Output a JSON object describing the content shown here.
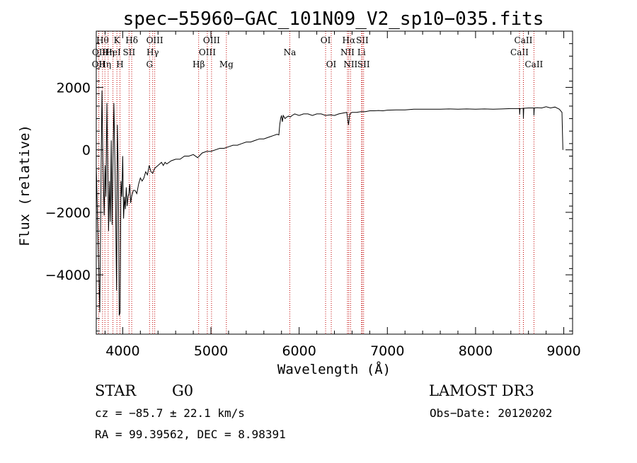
{
  "chart_data": {
    "type": "line",
    "title": "spec−55960−GAC_101N09_V2_sp10−035.fits",
    "xlabel": "Wavelength (Å)",
    "ylabel": "Flux (relative)",
    "xlim": [
      3700,
      9100
    ],
    "ylim": [
      -5900,
      3800
    ],
    "x_ticks": [
      4000,
      5000,
      6000,
      7000,
      8000,
      9000
    ],
    "y_ticks": [
      2000,
      0,
      -2000,
      -4000
    ],
    "x_tick_labels": [
      "4000",
      "5000",
      "6000",
      "7000",
      "8000",
      "9000"
    ],
    "y_tick_labels": [
      "2000",
      "0",
      "−2000",
      "−4000"
    ],
    "grid": false,
    "series": [
      {
        "name": "spectrum",
        "points": [
          [
            3700,
            -500
          ],
          [
            3720,
            -2900
          ],
          [
            3740,
            -5200
          ],
          [
            3755,
            -500
          ],
          [
            3765,
            1900
          ],
          [
            3775,
            -300
          ],
          [
            3790,
            -2100
          ],
          [
            3800,
            -500
          ],
          [
            3810,
            -1500
          ],
          [
            3820,
            1500
          ],
          [
            3830,
            -500
          ],
          [
            3840,
            -2600
          ],
          [
            3850,
            -1000
          ],
          [
            3860,
            -2300
          ],
          [
            3870,
            300
          ],
          [
            3880,
            -2400
          ],
          [
            3890,
            -200
          ],
          [
            3900,
            1500
          ],
          [
            3910,
            -200
          ],
          [
            3920,
            -2000
          ],
          [
            3930,
            -4500
          ],
          [
            3940,
            800
          ],
          [
            3950,
            -800
          ],
          [
            3960,
            -5300
          ],
          [
            3970,
            -5200
          ],
          [
            3980,
            -1000
          ],
          [
            3990,
            -1500
          ],
          [
            4000,
            -200
          ],
          [
            4010,
            -2200
          ],
          [
            4020,
            -1500
          ],
          [
            4030,
            -1900
          ],
          [
            4040,
            -1200
          ],
          [
            4050,
            -1800
          ],
          [
            4060,
            -1500
          ],
          [
            4070,
            -1400
          ],
          [
            4080,
            -1100
          ],
          [
            4090,
            -1700
          ],
          [
            4100,
            -1500
          ],
          [
            4120,
            -1300
          ],
          [
            4140,
            -1300
          ],
          [
            4160,
            -1400
          ],
          [
            4180,
            -1100
          ],
          [
            4200,
            -900
          ],
          [
            4220,
            -1000
          ],
          [
            4240,
            -900
          ],
          [
            4260,
            -700
          ],
          [
            4280,
            -800
          ],
          [
            4300,
            -500
          ],
          [
            4320,
            -700
          ],
          [
            4340,
            -750
          ],
          [
            4360,
            -600
          ],
          [
            4380,
            -550
          ],
          [
            4400,
            -500
          ],
          [
            4420,
            -450
          ],
          [
            4440,
            -400
          ],
          [
            4460,
            -500
          ],
          [
            4480,
            -400
          ],
          [
            4500,
            -450
          ],
          [
            4550,
            -350
          ],
          [
            4600,
            -300
          ],
          [
            4650,
            -300
          ],
          [
            4700,
            -200
          ],
          [
            4750,
            -200
          ],
          [
            4800,
            -150
          ],
          [
            4850,
            -250
          ],
          [
            4900,
            -100
          ],
          [
            4950,
            -50
          ],
          [
            5000,
            -50
          ],
          [
            5050,
            0
          ],
          [
            5100,
            50
          ],
          [
            5150,
            50
          ],
          [
            5200,
            100
          ],
          [
            5250,
            150
          ],
          [
            5300,
            150
          ],
          [
            5350,
            200
          ],
          [
            5400,
            250
          ],
          [
            5450,
            250
          ],
          [
            5500,
            300
          ],
          [
            5550,
            350
          ],
          [
            5600,
            350
          ],
          [
            5650,
            400
          ],
          [
            5700,
            450
          ],
          [
            5750,
            500
          ],
          [
            5770,
            480
          ],
          [
            5780,
            800
          ],
          [
            5790,
            1000
          ],
          [
            5800,
            1100
          ],
          [
            5810,
            900
          ],
          [
            5820,
            1100
          ],
          [
            5840,
            1000
          ],
          [
            5860,
            1050
          ],
          [
            5880,
            1080
          ],
          [
            5900,
            1050
          ],
          [
            5920,
            1100
          ],
          [
            5950,
            1150
          ],
          [
            6000,
            1100
          ],
          [
            6050,
            1150
          ],
          [
            6100,
            1150
          ],
          [
            6150,
            1100
          ],
          [
            6200,
            1150
          ],
          [
            6250,
            1150
          ],
          [
            6300,
            1100
          ],
          [
            6350,
            1120
          ],
          [
            6400,
            1100
          ],
          [
            6450,
            1150
          ],
          [
            6500,
            1180
          ],
          [
            6540,
            1200
          ],
          [
            6560,
            800
          ],
          [
            6575,
            1150
          ],
          [
            6600,
            1200
          ],
          [
            6650,
            1200
          ],
          [
            6700,
            1220
          ],
          [
            6750,
            1220
          ],
          [
            6800,
            1250
          ],
          [
            6850,
            1250
          ],
          [
            6900,
            1260
          ],
          [
            6950,
            1250
          ],
          [
            7000,
            1270
          ],
          [
            7100,
            1280
          ],
          [
            7200,
            1280
          ],
          [
            7300,
            1300
          ],
          [
            7400,
            1300
          ],
          [
            7500,
            1300
          ],
          [
            7600,
            1300
          ],
          [
            7700,
            1310
          ],
          [
            7800,
            1300
          ],
          [
            7900,
            1310
          ],
          [
            8000,
            1300
          ],
          [
            8100,
            1310
          ],
          [
            8200,
            1300
          ],
          [
            8300,
            1310
          ],
          [
            8400,
            1320
          ],
          [
            8498,
            1320
          ],
          [
            8500,
            1130
          ],
          [
            8505,
            1320
          ],
          [
            8540,
            1330
          ],
          [
            8542,
            1000
          ],
          [
            8546,
            1330
          ],
          [
            8600,
            1340
          ],
          [
            8660,
            1340
          ],
          [
            8662,
            1100
          ],
          [
            8666,
            1340
          ],
          [
            8700,
            1350
          ],
          [
            8750,
            1340
          ],
          [
            8800,
            1380
          ],
          [
            8850,
            1340
          ],
          [
            8900,
            1370
          ],
          [
            8950,
            1300
          ],
          [
            8980,
            1200
          ],
          [
            8990,
            0
          ]
        ]
      }
    ],
    "line_markers": [
      {
        "x": 3727,
        "row": 2,
        "label": "OII"
      },
      {
        "x": 3729,
        "row": 1,
        "label": "OII"
      },
      {
        "x": 3771,
        "row": 0,
        "label": "Hθ"
      },
      {
        "x": 3798,
        "row": 2,
        "label": "Hη"
      },
      {
        "x": 3835,
        "row": 1,
        "label": "Hη"
      },
      {
        "x": 3889,
        "row": 1,
        "label": "HeI"
      },
      {
        "x": 3934,
        "row": 0,
        "label": "K"
      },
      {
        "x": 3969,
        "row": 2,
        "label": "H"
      },
      {
        "x": 4072,
        "row": 1,
        "label": "SII"
      },
      {
        "x": 4102,
        "row": 0,
        "label": "Hδ"
      },
      {
        "x": 4304,
        "row": 2,
        "label": "G"
      },
      {
        "x": 4340,
        "row": 1,
        "label": "Hγ"
      },
      {
        "x": 4363,
        "row": 0,
        "label": "OIII"
      },
      {
        "x": 4861,
        "row": 2,
        "label": "Hβ"
      },
      {
        "x": 4959,
        "row": 1,
        "label": "OIII"
      },
      {
        "x": 5007,
        "row": 0,
        "label": "OIII"
      },
      {
        "x": 5175,
        "row": 2,
        "label": "Mg"
      },
      {
        "x": 5894,
        "row": 1,
        "label": "Na"
      },
      {
        "x": 6300,
        "row": 0,
        "label": "OI"
      },
      {
        "x": 6364,
        "row": 2,
        "label": "OI"
      },
      {
        "x": 6548,
        "row": 1,
        "label": "NII"
      },
      {
        "x": 6563,
        "row": 0,
        "label": "Hα"
      },
      {
        "x": 6583,
        "row": 2,
        "label": "NII"
      },
      {
        "x": 6707,
        "row": 1,
        "label": "Li"
      },
      {
        "x": 6716,
        "row": 0,
        "label": "SII"
      },
      {
        "x": 6731,
        "row": 2,
        "label": "SII"
      },
      {
        "x": 8498,
        "row": 1,
        "label": "CaII"
      },
      {
        "x": 8542,
        "row": 0,
        "label": "CaII"
      },
      {
        "x": 8662,
        "row": 2,
        "label": "CaII"
      }
    ]
  },
  "info": {
    "object_class": "STAR",
    "subclass": "G0",
    "survey": "LAMOST DR3",
    "cz": "cz = −85.7 ± 22.1 km/s",
    "obs_date": "Obs−Date: 20120202",
    "radec": "RA =  99.39562, DEC =   8.98391"
  }
}
